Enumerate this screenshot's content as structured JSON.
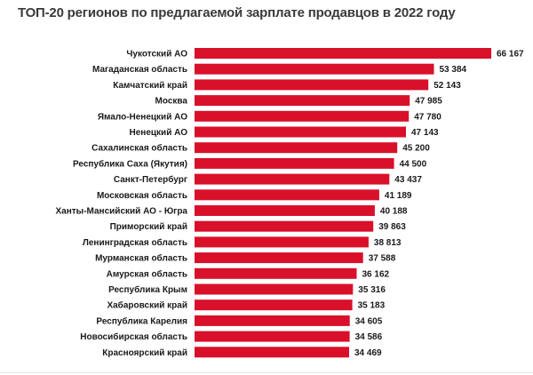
{
  "chart_data": {
    "type": "bar",
    "orientation": "horizontal",
    "title": "ТОП-20 регионов по предлагаемой зарплате продавцов в 2022 году",
    "categories": [
      "Чукотский АО",
      "Магаданская область",
      "Камчатский край",
      "Москва",
      "Ямало-Ненецкий АО",
      "Ненецкий АО",
      "Сахалинская область",
      "Республика Саха (Якутия)",
      "Санкт-Петербург",
      "Московская область",
      "Ханты-Мансийский АО - Югра",
      "Приморский край",
      "Ленинградская область",
      "Мурманская область",
      "Амурская область",
      "Республика Крым",
      "Хабаровский край",
      "Республика Карелия",
      "Новосибирская область",
      "Красноярский край"
    ],
    "values": [
      66167,
      53384,
      52143,
      47985,
      47780,
      47143,
      45200,
      44500,
      43437,
      41189,
      40188,
      39863,
      38813,
      37588,
      36162,
      35316,
      35183,
      34605,
      34586,
      34469
    ],
    "value_labels": [
      "66 167",
      "53 384",
      "52 143",
      "47 985",
      "47 780",
      "47 143",
      "45 200",
      "44 500",
      "43 437",
      "41 189",
      "40 188",
      "39 863",
      "38 813",
      "37 588",
      "36 162",
      "35 316",
      "35 183",
      "34 605",
      "34 586",
      "34 469"
    ],
    "xlabel": "",
    "ylabel": "",
    "xlim": [
      0,
      66167
    ],
    "grid": false,
    "legend": "none",
    "bar_color": "#d9102a"
  }
}
